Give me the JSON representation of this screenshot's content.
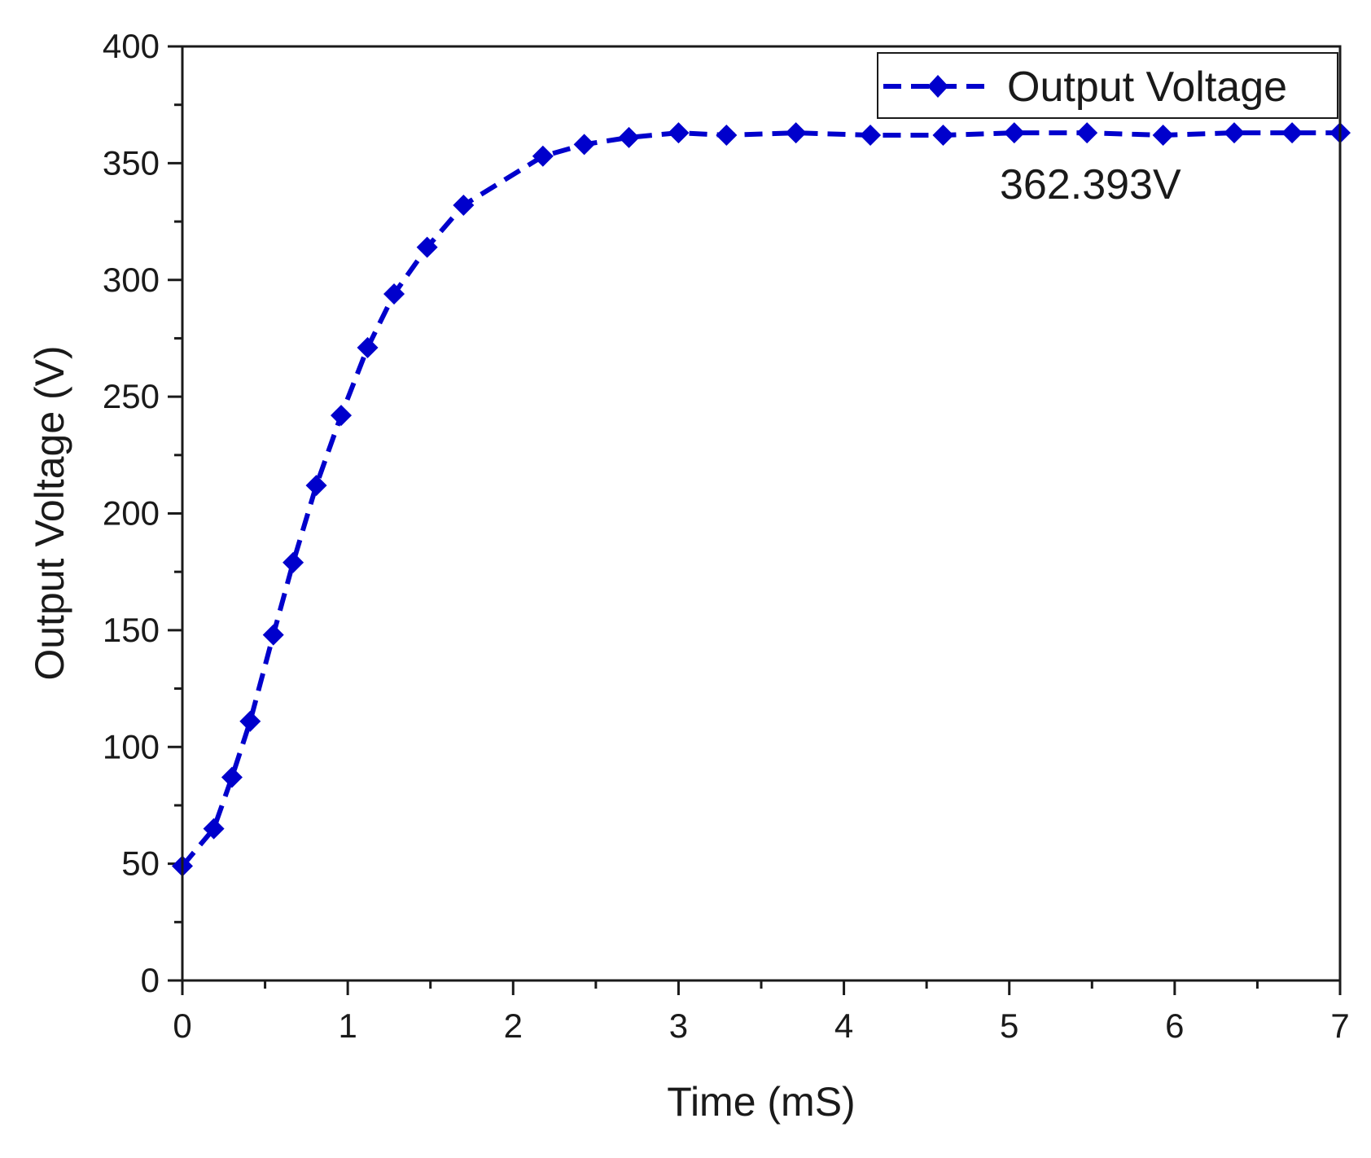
{
  "chart_data": {
    "type": "line",
    "title": "",
    "xlabel": "Time (mS)",
    "ylabel": "Output Voltage (V)",
    "xlim": [
      0,
      7
    ],
    "ylim": [
      0,
      400
    ],
    "x_ticks": [
      "0",
      "1",
      "2",
      "3",
      "4",
      "5",
      "6",
      "7"
    ],
    "y_ticks": [
      "0",
      "50",
      "100",
      "150",
      "200",
      "250",
      "300",
      "350",
      "400"
    ],
    "grid": false,
    "legend_position": "top-right",
    "series": [
      {
        "name": "Output Voltage",
        "color": "#0000cc",
        "line_style": "dashed",
        "marker": "diamond",
        "x": [
          0,
          0.19,
          0.3,
          0.41,
          0.55,
          0.67,
          0.81,
          0.96,
          1.12,
          1.28,
          1.48,
          1.7,
          2.18,
          2.43,
          2.7,
          3.0,
          3.29,
          3.71,
          4.16,
          4.6,
          5.03,
          5.47,
          5.93,
          6.36,
          6.71,
          7.0
        ],
        "y": [
          49,
          65,
          87,
          111,
          148,
          179,
          212,
          242,
          271,
          294,
          314,
          332,
          353,
          358,
          361,
          363,
          362,
          363,
          362,
          362,
          363,
          363,
          362,
          363,
          363,
          363
        ]
      }
    ],
    "annotations": [
      {
        "text": "362.393V",
        "x": 5.5,
        "y": 340
      }
    ]
  }
}
